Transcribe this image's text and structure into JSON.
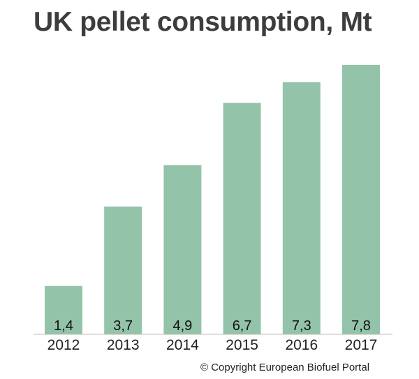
{
  "chart_data": {
    "type": "bar",
    "title": "UK pellet consumption, Mt",
    "categories": [
      "2012",
      "2013",
      "2014",
      "2015",
      "2016",
      "2017"
    ],
    "values": [
      1.4,
      3.7,
      4.9,
      6.7,
      7.3,
      7.8
    ],
    "data_labels": [
      "1,4",
      "3,7",
      "4,9",
      "6,7",
      "7,3",
      "7,8"
    ],
    "xlabel": "",
    "ylabel": "",
    "grid": false,
    "legend": "none",
    "bar_color": "#93c4a9"
  },
  "footer": {
    "copyright": "© Copyright European Biofuel Portal"
  }
}
